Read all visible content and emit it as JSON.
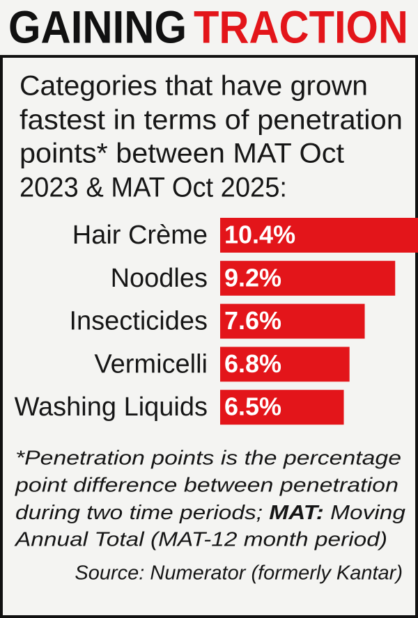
{
  "chart_data": {
    "type": "bar",
    "orientation": "horizontal",
    "title": [
      "GAINING",
      "TRACTION"
    ],
    "title_colors": [
      "#111111",
      "#e3151a"
    ],
    "subtitle": [
      "Categories that have grown",
      "fastest in terms of penetration",
      "points* between MAT Oct",
      "2023 & MAT Oct 2025:"
    ],
    "categories": [
      "Hair Crème",
      "Noodles",
      "Insecticides",
      "Vermicelli",
      "Washing Liquids"
    ],
    "values": [
      10.4,
      9.2,
      7.6,
      6.8,
      6.5
    ],
    "value_labels": [
      "10.4%",
      "9.2%",
      "7.6%",
      "6.8%",
      "6.5%"
    ],
    "color": "#e3151a",
    "note": [
      "*Penetration points is the percentage",
      "point difference between penetration",
      "during two time periods;",
      "MAT:",
      "Moving",
      "Annual Total (MAT-12 month period)"
    ],
    "source": "Source: Numerator (formerly Kantar)"
  }
}
